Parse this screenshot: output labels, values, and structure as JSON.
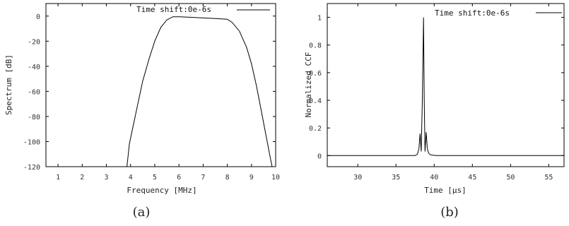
{
  "chart_data": [
    {
      "type": "line",
      "caption": "(a)",
      "xlabel": "Frequency [MHz]",
      "ylabel": "Spectrum [dB]",
      "xlim": [
        0.5,
        10
      ],
      "ylim": [
        -120,
        10
      ],
      "x_ticks": [
        "1",
        "2",
        "3",
        "4",
        "5",
        "6",
        "7",
        "8",
        "9",
        "10"
      ],
      "y_ticks": [
        "0",
        "-20",
        "-40",
        "-60",
        "-80",
        "-100",
        "-120"
      ],
      "legend": "top-right",
      "grid": false,
      "series": [
        {
          "name": "Time shift:0e-6s",
          "x": [
            3.85,
            3.95,
            4.1,
            4.3,
            4.5,
            4.75,
            5.0,
            5.25,
            5.5,
            5.75,
            6.0,
            6.5,
            7.0,
            7.5,
            8.0,
            8.2,
            8.5,
            8.8,
            9.0,
            9.2,
            9.4,
            9.6,
            9.75,
            9.85
          ],
          "y": [
            -120,
            -102,
            -88,
            -70,
            -52,
            -35,
            -20,
            -9,
            -3,
            -0.5,
            -0.5,
            -1,
            -1.5,
            -2,
            -2.5,
            -5,
            -12,
            -25,
            -38,
            -55,
            -75,
            -95,
            -110,
            -120
          ]
        }
      ]
    },
    {
      "type": "line",
      "caption": "(b)",
      "xlabel": "Time [µs]",
      "ylabel": "Normalized CCF",
      "xlim": [
        26,
        57
      ],
      "ylim": [
        -0.08,
        1.1
      ],
      "x_ticks": [
        "30",
        "35",
        "40",
        "45",
        "50",
        "55"
      ],
      "y_ticks": [
        "0",
        "0.2",
        "0.4",
        "0.6",
        "0.8",
        "1"
      ],
      "legend": "top-right",
      "grid": false,
      "series": [
        {
          "name": "Time shift:0e-6s",
          "x": [
            26,
            37.5,
            37.8,
            38.0,
            38.15,
            38.3,
            38.45,
            38.6,
            38.7,
            38.8,
            38.95,
            39.1,
            39.25,
            39.4,
            39.6,
            39.9,
            40.3,
            57
          ],
          "y": [
            0,
            0,
            0.01,
            0.05,
            0.16,
            0.03,
            0.4,
            1.0,
            0.4,
            0.03,
            0.17,
            0.05,
            0.02,
            0.01,
            0.005,
            0.002,
            0,
            0
          ]
        }
      ]
    }
  ]
}
